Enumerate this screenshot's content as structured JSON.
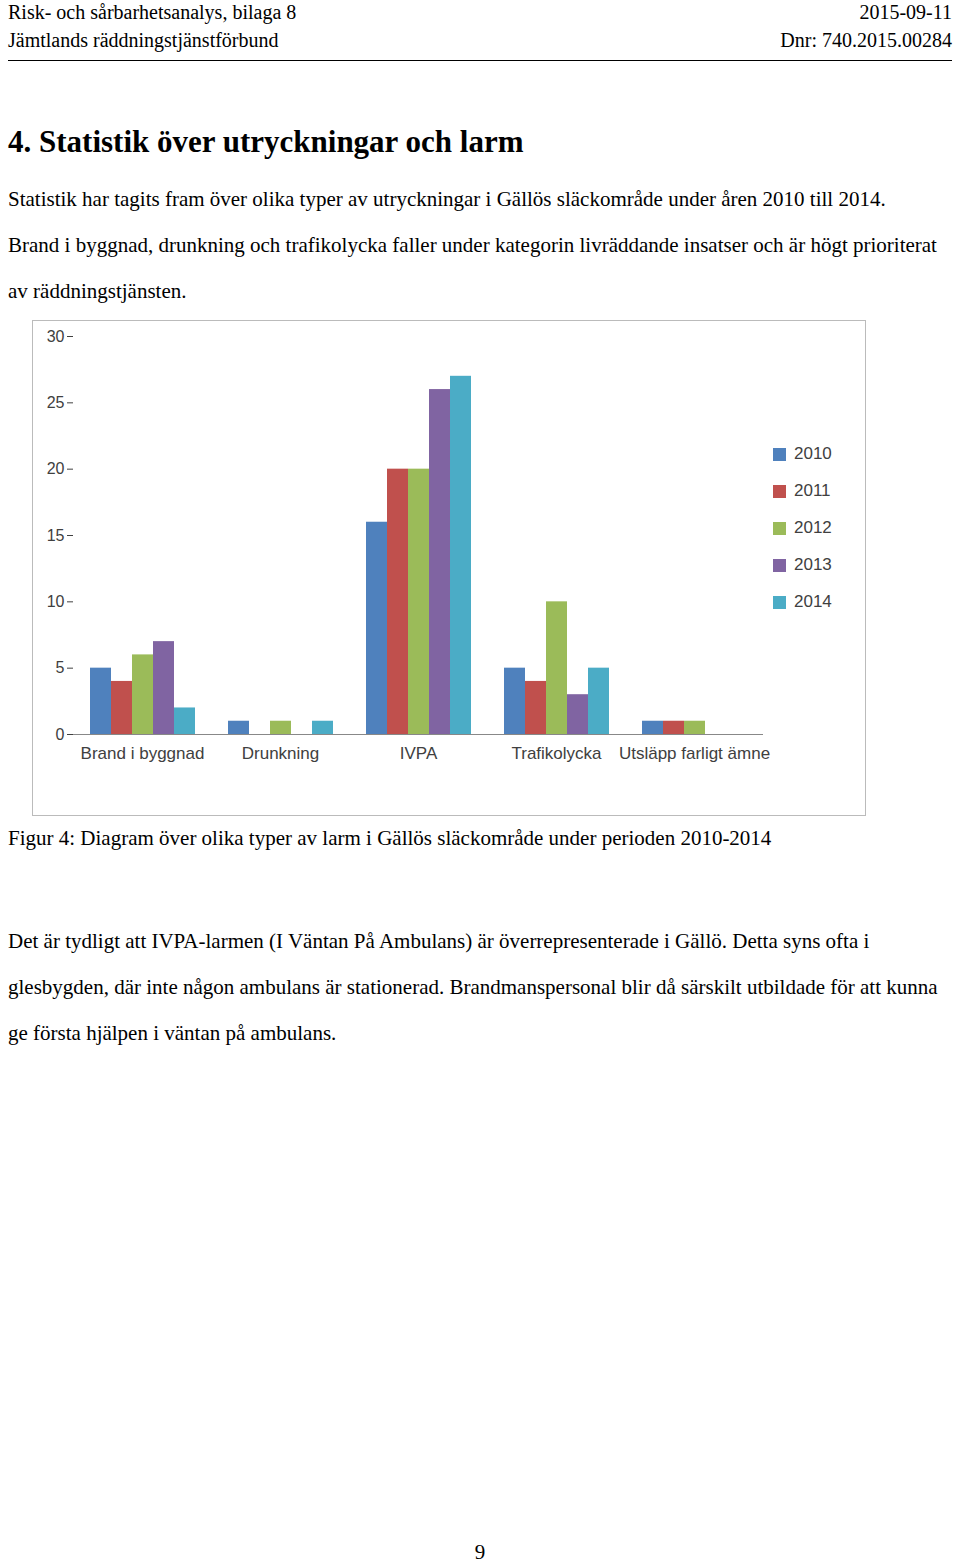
{
  "header": {
    "left_line_1": "Risk- och sårbarhetsanalys, bilaga 8",
    "right_line_1": "2015-09-11",
    "left_line_2": "Jämtlands räddningstjänstförbund",
    "right_line_2": "Dnr: 740.2015.00284"
  },
  "heading": "4. Statistik över utryckningar och larm",
  "paragraph_1": "Statistik har tagits fram över olika typer av utryckningar i Gällös släckområde under åren 2010 till 2014. Brand i byggnad, drunkning och trafikolycka faller under kategorin livräddande insatser och är högt prioriterat av räddningstjänsten.",
  "chart_data": {
    "type": "bar",
    "categories": [
      "Brand i byggnad",
      "Drunkning",
      "IVPA",
      "Trafikolycka",
      "Utsläpp farligt ämne"
    ],
    "series": [
      {
        "name": "2010",
        "color": "#4f81bd",
        "values": [
          5,
          1,
          16,
          5,
          1
        ]
      },
      {
        "name": "2011",
        "color": "#c0504d",
        "values": [
          4,
          0,
          20,
          4,
          1
        ]
      },
      {
        "name": "2012",
        "color": "#9bbb59",
        "values": [
          6,
          1,
          20,
          10,
          1
        ]
      },
      {
        "name": "2013",
        "color": "#8064a2",
        "values": [
          7,
          0,
          26,
          3,
          0
        ]
      },
      {
        "name": "2014",
        "color": "#4bacc6",
        "values": [
          2,
          1,
          27,
          5,
          0
        ]
      }
    ],
    "ylim": [
      0,
      30
    ],
    "yticks": [
      0,
      5,
      10,
      15,
      20,
      25,
      30
    ],
    "grid": false,
    "legend": "right"
  },
  "caption": "Figur 4: Diagram över olika typer av larm i Gällös släckområde under perioden 2010-2014",
  "paragraph_2": "Det är tydligt att IVPA-larmen (I Väntan På Ambulans) är överrepresenterade i Gällö. Detta syns ofta i glesbygden, där inte någon ambulans är stationerad. Brandmanspersonal blir då särskilt utbildade för att kunna ge första hjälpen i väntan på ambulans.",
  "page_number": "9"
}
